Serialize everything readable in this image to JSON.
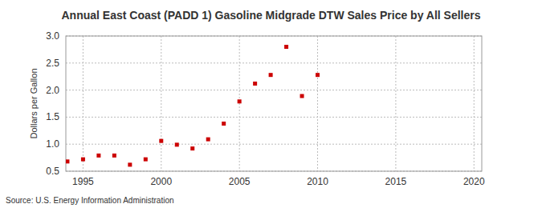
{
  "chart_data": {
    "type": "scatter",
    "title": "Annual East Coast (PADD 1) Gasoline Midgrade DTW Sales Price by All Sellers",
    "y_label": "Dollars per Gallon",
    "source": "Source: U.S. Energy Information Administration",
    "x": [
      1994,
      1995,
      1996,
      1997,
      1998,
      1999,
      2000,
      2001,
      2002,
      2003,
      2004,
      2005,
      2006,
      2007,
      2008,
      2009,
      2010
    ],
    "values": [
      0.68,
      0.72,
      0.79,
      0.79,
      0.62,
      0.72,
      1.06,
      0.99,
      0.92,
      1.09,
      1.38,
      1.79,
      2.12,
      2.28,
      2.8,
      1.89,
      2.28
    ],
    "color": "#cc0000",
    "marker": "square",
    "xlim": [
      1993.9,
      2020.5
    ],
    "xticks": [
      1995,
      2000,
      2005,
      2010,
      2015,
      2020
    ],
    "ylim": [
      0.5,
      3.0
    ],
    "yticks": [
      0.5,
      {
        "value": 1,
        "label": "1.0"
      },
      1.5,
      {
        "value": 2,
        "label": "2.0"
      },
      2.5,
      {
        "value": 3,
        "label": "3.0"
      }
    ],
    "grid": true
  }
}
